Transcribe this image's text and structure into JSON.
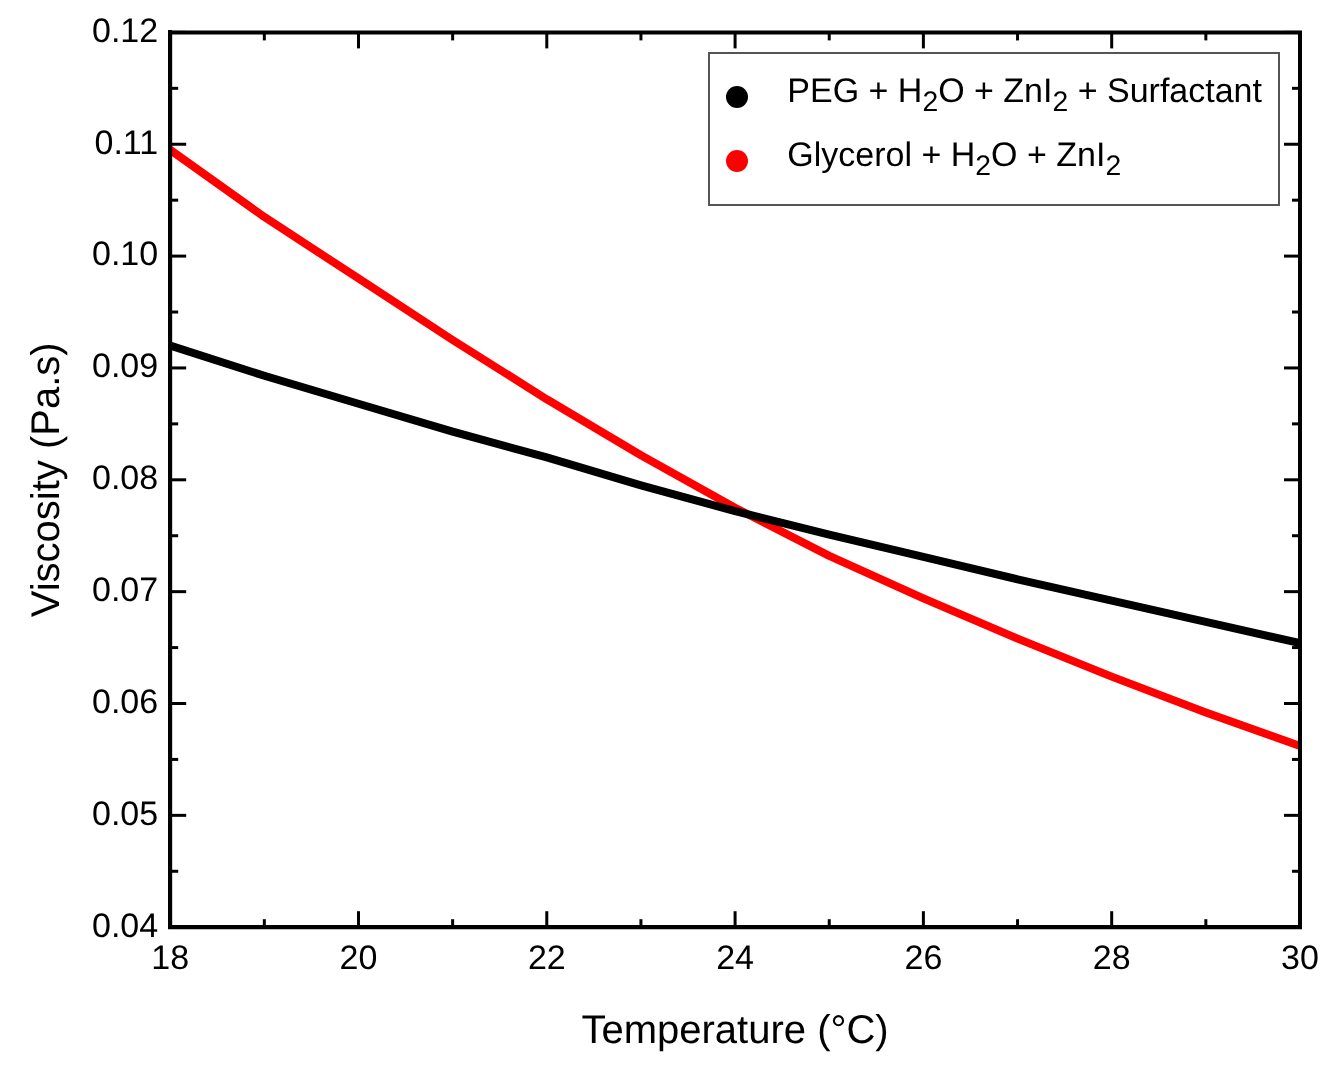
{
  "chart_data": {
    "type": "line",
    "xlabel": "Temperature (°C)",
    "ylabel": "Viscosity (Pa.s)",
    "x": [
      18,
      19,
      20,
      21,
      22,
      23,
      24,
      25,
      26,
      27,
      28,
      29,
      30
    ],
    "series": [
      {
        "name": "PEG + H$_{2}$O + ZnI$_{2}$ + Surfactant",
        "color": "#000000",
        "values": [
          0.092,
          0.0893,
          0.0868,
          0.0843,
          0.082,
          0.0795,
          0.0772,
          0.0751,
          0.0731,
          0.0711,
          0.0692,
          0.0673,
          0.0654
        ]
      },
      {
        "name": "Glycerol + H$_{2}$O + ZnI$_{2}$",
        "color": "#ff0000",
        "values": [
          0.1095,
          0.1035,
          0.098,
          0.0925,
          0.0872,
          0.0822,
          0.0775,
          0.0732,
          0.0694,
          0.0658,
          0.0624,
          0.0592,
          0.0562
        ]
      }
    ],
    "xlim": [
      18,
      30
    ],
    "xticks": [
      18,
      20,
      22,
      24,
      26,
      28,
      30
    ],
    "ylim": [
      0.04,
      0.12
    ],
    "yticks": [
      {
        "value": 0.04,
        "label": "0.04"
      },
      {
        "value": 0.05,
        "label": "0.05"
      },
      {
        "value": 0.06,
        "label": "0.06"
      },
      {
        "value": 0.07,
        "label": "0.07"
      },
      {
        "value": 0.08,
        "label": "0.08"
      },
      {
        "value": 0.09,
        "label": "0.09"
      },
      {
        "value": 0.1,
        "label": "0.10"
      },
      {
        "value": 0.11,
        "label": "0.11"
      },
      {
        "value": 0.12,
        "label": "0.12"
      }
    ],
    "grid": false,
    "legend": "top right",
    "marker": "none",
    "line_style": "solid"
  }
}
